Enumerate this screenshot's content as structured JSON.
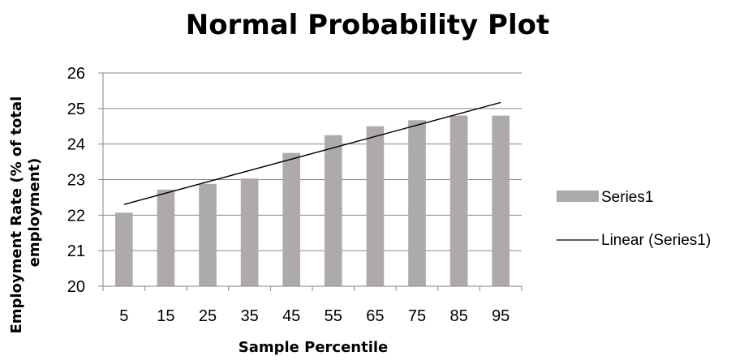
{
  "chart_data": {
    "type": "bar",
    "title": "Normal Probability Plot",
    "xlabel": "Sample Percentile",
    "ylabel_lines": [
      "Employment Rate (% of total",
      "employment)"
    ],
    "categories": [
      "5",
      "15",
      "25",
      "35",
      "45",
      "55",
      "65",
      "75",
      "85",
      "95"
    ],
    "series": [
      {
        "name": "Series1",
        "type": "bar",
        "color": "#aeaaa9",
        "values": [
          22.07,
          22.72,
          22.88,
          23.03,
          23.75,
          24.25,
          24.5,
          24.67,
          24.8,
          24.8
        ]
      }
    ],
    "trendline": {
      "name": "Linear (Series1)",
      "type": "linear",
      "color": "#000000",
      "start": 22.3,
      "end": 25.17
    },
    "yticks": [
      "20",
      "21",
      "22",
      "23",
      "24",
      "25",
      "26"
    ],
    "ylim": [
      20,
      26
    ],
    "grid": true,
    "legend_position": "right"
  }
}
